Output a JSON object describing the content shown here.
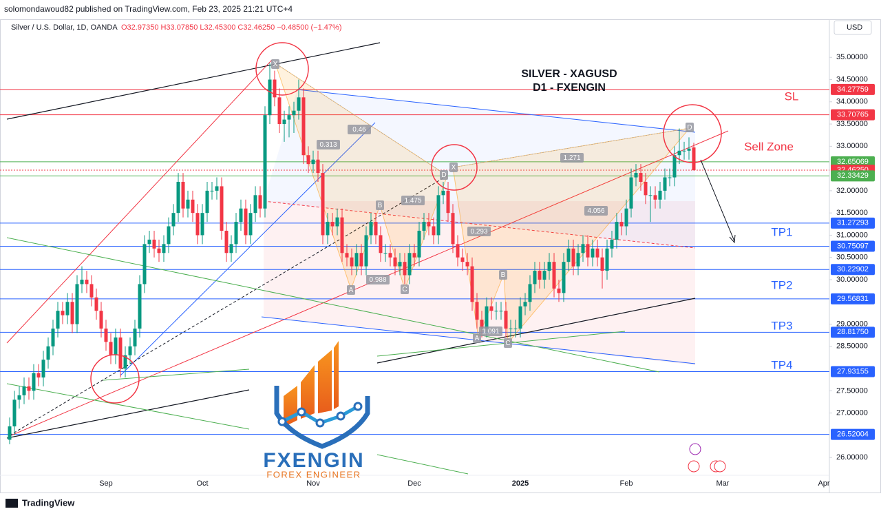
{
  "header": {
    "publisher": "solomondawoud82 published on TradingView.com, Feb 23, 2025 21:21 UTC+4",
    "symbol": "Silver / U.S. Dollar, 1D, OANDA",
    "ohlc": "O32.97350 H33.07850 L32.45300 C32.46250 −0.48500 (−1.47%)",
    "currency": "USD"
  },
  "footer": "TradingView",
  "logo": {
    "name": "FXENGIN",
    "tagline": "FOREX ENGINEER"
  },
  "chart_data": {
    "type": "candlestick",
    "title": "SILVER - XAGUSD",
    "subtitle": "D1 - FXENGIN",
    "up_color": "#089981",
    "down_color": "#f23645",
    "categories": [
      null,
      null,
      null,
      null,
      null,
      null,
      null,
      null,
      null,
      null,
      null,
      null,
      null,
      null,
      null,
      null,
      null,
      null,
      null,
      null,
      "Sep",
      null,
      null,
      null,
      null,
      null,
      null,
      null,
      null,
      null,
      null,
      null,
      null,
      null,
      null,
      null,
      null,
      null,
      null,
      null,
      "Oct",
      null,
      null,
      null,
      null,
      null,
      null,
      null,
      null,
      null,
      null,
      null,
      null,
      null,
      null,
      null,
      null,
      null,
      null,
      null,
      null,
      null,
      null,
      "Nov",
      null,
      null,
      null,
      null,
      null,
      null,
      null,
      null,
      null,
      null,
      null,
      null,
      null,
      null,
      null,
      null,
      null,
      null,
      null,
      null,
      "Dec",
      null,
      null,
      null,
      null,
      null,
      null,
      null,
      null,
      null,
      null,
      null,
      null,
      null,
      null,
      null,
      null,
      null,
      null,
      null,
      null,
      null,
      "2025",
      null,
      null,
      null,
      null,
      null,
      null,
      null,
      null,
      null,
      null,
      null,
      null,
      null,
      null,
      null,
      null,
      null,
      null,
      null,
      null,
      null,
      "Feb",
      null,
      null,
      null,
      null,
      null,
      null,
      null,
      null,
      null,
      null,
      null,
      null,
      null,
      null,
      null,
      null,
      null,
      null,
      null,
      "Mar",
      null,
      null,
      null,
      null,
      null,
      null,
      null,
      null,
      null,
      null,
      null,
      null,
      null,
      null,
      null,
      null,
      null,
      null,
      null,
      null,
      "Apr"
    ],
    "open": [
      26.4,
      26.7,
      27.3,
      27.4,
      27.6,
      27.5,
      27.9,
      27.8,
      28.2,
      28.5,
      28.9,
      29.3,
      29.2,
      29.5,
      29.0,
      29.9,
      30.0,
      29.9,
      29.6,
      29.3,
      28.9,
      28.6,
      28.3,
      28.7,
      28.0,
      28.3,
      28.5,
      28.9,
      29.9,
      30.8,
      30.9,
      30.7,
      30.6,
      30.8,
      31.2,
      31.5,
      32.2,
      31.6,
      31.8,
      31.5,
      31.0,
      31.5,
      32.0,
      32.0,
      32.1,
      31.1,
      30.6,
      30.8,
      31.3,
      31.6,
      31.0,
      31.5,
      31.9,
      31.6,
      33.7,
      34.5,
      34.1,
      33.5,
      33.6,
      33.7,
      33.8,
      34.1,
      32.8,
      32.6,
      32.7,
      32.4,
      31.0,
      31.3,
      31.2,
      31.4,
      30.6,
      30.5,
      30.3,
      30.6,
      30.3,
      31.0,
      31.3,
      31.0,
      30.6,
      30.6,
      30.5,
      30.3,
      30.4,
      30.1,
      30.6,
      30.5,
      31.1,
      31.3,
      31.2,
      31.0,
      31.9,
      32.0,
      31.5,
      30.8,
      30.5,
      30.4,
      30.3,
      29.5,
      29.1,
      28.9,
      29.4,
      29.3,
      29.3,
      29.3,
      28.9,
      28.9,
      28.9,
      29.4,
      29.5,
      29.9,
      30.2,
      30.0,
      30.2,
      30.4,
      29.8,
      29.7,
      30.4,
      30.7,
      30.3,
      30.6,
      30.8,
      30.5,
      30.7,
      30.5,
      30.2,
      30.7,
      30.9,
      31.3,
      31.2,
      31.6,
      32.3,
      32.4,
      32.2,
      31.9,
      31.9,
      31.8,
      32.0,
      32.3,
      32.3,
      32.8,
      32.9,
      32.9,
      32.9735,
      null,
      null,
      null,
      null,
      null,
      null,
      null,
      null,
      null,
      null,
      null,
      null,
      null,
      null,
      null,
      null,
      null,
      null,
      null,
      null,
      null,
      null,
      null,
      null,
      null,
      null,
      null
    ],
    "high": [
      26.9,
      27.5,
      27.6,
      27.8,
      27.8,
      28.1,
      28.1,
      28.4,
      28.7,
      29.1,
      29.5,
      29.5,
      29.7,
      29.7,
      30.1,
      30.3,
      30.2,
      30.1,
      29.8,
      29.5,
      29.1,
      28.8,
      28.9,
      28.9,
      28.5,
      28.7,
      29.1,
      30.1,
      31.0,
      31.1,
      31.1,
      30.9,
      31.0,
      31.4,
      31.7,
      32.4,
      32.4,
      32.0,
      32.0,
      31.7,
      31.7,
      32.2,
      32.2,
      32.3,
      32.3,
      31.3,
      31.0,
      31.5,
      31.8,
      31.8,
      31.7,
      32.1,
      32.1,
      33.9,
      34.87,
      34.7,
      34.3,
      33.8,
      33.9,
      34.0,
      34.5,
      34.3,
      33.0,
      32.9,
      32.9,
      32.6,
      31.5,
      31.5,
      31.6,
      31.6,
      30.8,
      30.7,
      30.8,
      30.8,
      31.2,
      31.5,
      31.5,
      31.2,
      30.8,
      30.8,
      30.7,
      30.6,
      30.6,
      30.8,
      30.8,
      31.3,
      31.5,
      31.5,
      31.4,
      32.1,
      32.2,
      32.2,
      31.7,
      31.0,
      30.7,
      30.6,
      30.5,
      29.7,
      29.3,
      29.6,
      29.6,
      29.5,
      29.5,
      29.5,
      29.1,
      29.1,
      29.6,
      29.7,
      30.1,
      30.4,
      30.4,
      30.4,
      30.6,
      30.6,
      30.0,
      30.6,
      30.9,
      30.9,
      30.8,
      31.0,
      31.0,
      30.9,
      30.9,
      30.7,
      30.9,
      31.1,
      31.5,
      31.5,
      31.8,
      32.5,
      32.6,
      32.6,
      32.4,
      32.1,
      32.1,
      32.2,
      32.5,
      32.5,
      33.0,
      33.4,
      33.1,
      33.2,
      33.0785,
      null,
      null,
      null,
      null,
      null,
      null,
      null,
      null,
      null,
      null,
      null,
      null,
      null,
      null,
      null,
      null,
      null,
      null,
      null,
      null,
      null,
      null,
      null,
      null,
      null,
      null,
      null
    ],
    "low": [
      26.3,
      26.5,
      27.1,
      27.2,
      27.3,
      27.3,
      27.6,
      27.6,
      28.0,
      28.3,
      28.7,
      29.0,
      29.0,
      28.8,
      28.8,
      29.7,
      29.7,
      29.4,
      29.1,
      28.7,
      28.4,
      28.1,
      28.1,
      27.8,
      27.8,
      28.1,
      28.3,
      28.7,
      29.7,
      30.6,
      30.5,
      30.4,
      30.4,
      30.6,
      31.0,
      31.3,
      31.4,
      31.4,
      31.3,
      30.8,
      30.8,
      31.3,
      31.8,
      31.8,
      30.9,
      30.4,
      30.4,
      30.6,
      31.1,
      30.8,
      30.8,
      31.3,
      31.4,
      31.4,
      33.5,
      33.9,
      33.3,
      33.1,
      33.2,
      33.3,
      33.6,
      32.6,
      32.4,
      32.4,
      32.2,
      30.8,
      30.8,
      31.0,
      31.0,
      30.4,
      30.3,
      30.1,
      30.1,
      30.1,
      30.1,
      30.8,
      30.8,
      30.4,
      30.4,
      30.3,
      30.1,
      30.1,
      29.9,
      29.9,
      30.3,
      30.3,
      30.9,
      31.0,
      30.8,
      30.8,
      31.7,
      31.3,
      30.6,
      30.3,
      30.2,
      30.1,
      29.3,
      28.9,
      28.7,
      28.7,
      29.1,
      29.1,
      29.1,
      28.7,
      28.7,
      28.7,
      28.7,
      29.2,
      29.3,
      29.7,
      29.8,
      29.8,
      30.0,
      29.6,
      29.5,
      29.5,
      30.2,
      30.1,
      30.1,
      30.4,
      30.3,
      30.3,
      30.3,
      29.8,
      30.0,
      30.5,
      30.7,
      31.0,
      31.0,
      31.4,
      32.1,
      32.0,
      31.7,
      31.3,
      31.6,
      31.6,
      31.8,
      32.1,
      32.1,
      32.6,
      32.7,
      32.7,
      32.453,
      null,
      null,
      null,
      null,
      null,
      null,
      null,
      null,
      null,
      null,
      null,
      null,
      null,
      null,
      null,
      null,
      null,
      null,
      null,
      null,
      null,
      null,
      null,
      null,
      null,
      null,
      null
    ],
    "close": [
      26.7,
      27.3,
      27.4,
      27.6,
      27.5,
      27.9,
      27.8,
      28.2,
      28.5,
      28.9,
      29.3,
      29.2,
      29.5,
      29.0,
      29.9,
      30.0,
      29.9,
      29.6,
      29.3,
      28.9,
      28.6,
      28.3,
      28.7,
      28.0,
      28.3,
      28.5,
      28.9,
      29.9,
      30.8,
      30.9,
      30.7,
      30.6,
      30.8,
      31.2,
      31.5,
      32.2,
      31.6,
      31.8,
      31.5,
      31.0,
      31.5,
      32.0,
      32.0,
      32.1,
      31.1,
      30.6,
      30.8,
      31.3,
      31.6,
      31.0,
      31.5,
      31.9,
      31.6,
      33.7,
      34.5,
      34.1,
      33.5,
      33.6,
      33.7,
      33.8,
      34.1,
      32.8,
      32.6,
      32.7,
      32.4,
      31.0,
      31.3,
      31.2,
      31.4,
      30.6,
      30.5,
      30.3,
      30.6,
      30.3,
      31.0,
      31.3,
      31.0,
      30.6,
      30.6,
      30.5,
      30.3,
      30.4,
      30.1,
      30.6,
      30.5,
      31.1,
      31.3,
      31.2,
      31.0,
      31.9,
      32.0,
      31.5,
      30.8,
      30.5,
      30.4,
      30.3,
      29.5,
      29.1,
      28.9,
      29.4,
      29.3,
      29.3,
      29.3,
      28.9,
      28.9,
      28.9,
      29.4,
      29.5,
      29.9,
      30.2,
      30.0,
      30.2,
      30.4,
      29.8,
      29.7,
      30.4,
      30.7,
      30.3,
      30.6,
      30.8,
      30.5,
      30.7,
      30.5,
      30.2,
      30.7,
      30.9,
      31.3,
      31.2,
      31.6,
      32.3,
      32.4,
      32.2,
      31.9,
      31.9,
      31.8,
      32.0,
      32.3,
      32.3,
      32.8,
      32.9,
      32.9,
      32.9475,
      32.4625,
      null,
      null,
      null,
      null,
      null,
      null,
      null,
      null,
      null,
      null,
      null,
      null,
      null,
      null,
      null,
      null,
      null,
      null,
      null,
      null,
      null,
      null,
      null,
      null,
      null,
      null,
      null
    ],
    "ylim": [
      25.6,
      35.67
    ],
    "yticks": [
      {
        "value": 26,
        "label": "26.00000"
      },
      {
        "value": 27,
        "label": "27.00000"
      },
      {
        "value": 27.5,
        "label": "27.50000"
      },
      {
        "value": 28.5,
        "label": "28.50000"
      },
      {
        "value": 29,
        "label": "29.00000"
      },
      {
        "value": 30,
        "label": "30.00000"
      },
      {
        "value": 30.5,
        "label": "30.50000"
      },
      {
        "value": 31,
        "label": "31.00000"
      },
      {
        "value": 31.5,
        "label": "31.50000"
      },
      {
        "value": 32,
        "label": "32.00000"
      },
      {
        "value": 33,
        "label": "33.00000"
      },
      {
        "value": 33.5,
        "label": "33.50000"
      },
      {
        "value": 34,
        "label": "34.00000"
      },
      {
        "value": 34.5,
        "label": "34.50000"
      },
      {
        "value": 35,
        "label": "35.00000"
      }
    ],
    "grid": false,
    "levels": [
      {
        "value": 34.27759,
        "color": "#f23645"
      },
      {
        "value": 33.70765,
        "color": "#f23645"
      },
      {
        "value": 32.65069,
        "color": "#4caf50"
      },
      {
        "value": 32.4625,
        "label": "32.46250",
        "color": "#f23645",
        "dashed": true
      },
      {
        "value": 32.33429,
        "color": "#4caf50"
      },
      {
        "value": 31.27293,
        "color": "#2962ff"
      },
      {
        "value": 30.75097,
        "color": "#2962ff"
      },
      {
        "value": 30.22902,
        "color": "#2962ff"
      },
      {
        "value": 29.56831,
        "color": "#2962ff"
      },
      {
        "value": 28.8175,
        "label": "28.81750",
        "color": "#2962ff"
      },
      {
        "value": 27.93155,
        "color": "#2962ff"
      },
      {
        "value": 26.52004,
        "color": "#2962ff"
      }
    ],
    "annotations": [
      "SL",
      "Sell Zone",
      "TP1",
      "TP2",
      "TP3",
      "TP4"
    ],
    "pattern_labels": [
      "X",
      "A",
      "B",
      "C",
      "D",
      "X",
      "A",
      "B",
      "C",
      "D"
    ],
    "ratio_labels": [
      0.46,
      0.313,
      1.475,
      0.988,
      0.293,
      1.271,
      4.056,
      1.091
    ]
  }
}
